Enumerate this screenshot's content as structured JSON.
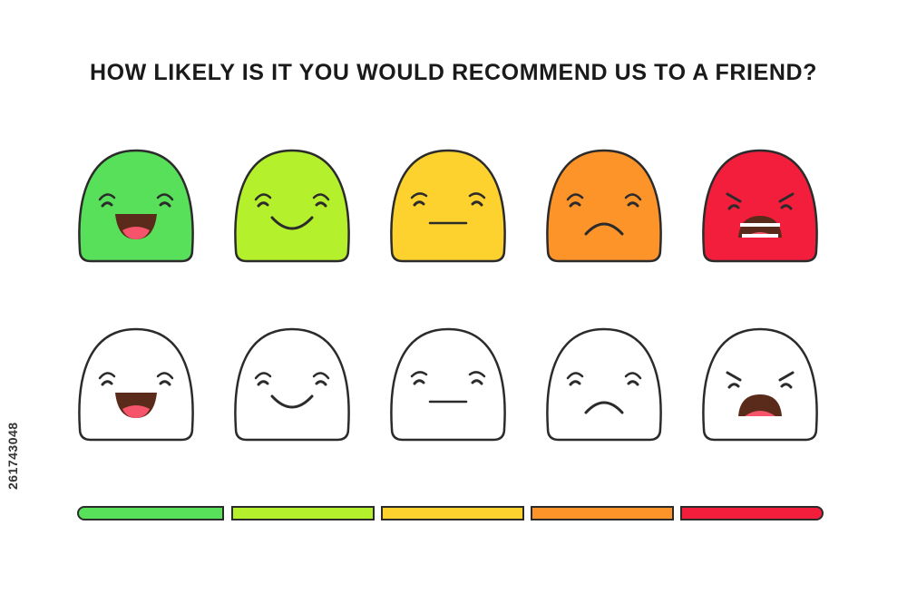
{
  "question": "HOW LIKELY IS IT YOU WOULD RECOMMEND US TO A FRIEND?",
  "stock_id": "261743048",
  "faces": [
    {
      "mood": "very-happy",
      "icon": "laughing-face-icon",
      "color": "#58e05a"
    },
    {
      "mood": "happy",
      "icon": "smiling-face-icon",
      "color": "#b5f02d"
    },
    {
      "mood": "neutral",
      "icon": "neutral-face-icon",
      "color": "#fdd22f"
    },
    {
      "mood": "sad",
      "icon": "sad-face-icon",
      "color": "#fd942a"
    },
    {
      "mood": "angry",
      "icon": "angry-face-icon",
      "color": "#f31e3c"
    }
  ],
  "scale_colors": [
    "#58e05a",
    "#b5f02d",
    "#fdd22f",
    "#fd942a",
    "#f31e3c"
  ],
  "outline_color": "#2b2b2b",
  "face_outline_fill": "#ffffff"
}
